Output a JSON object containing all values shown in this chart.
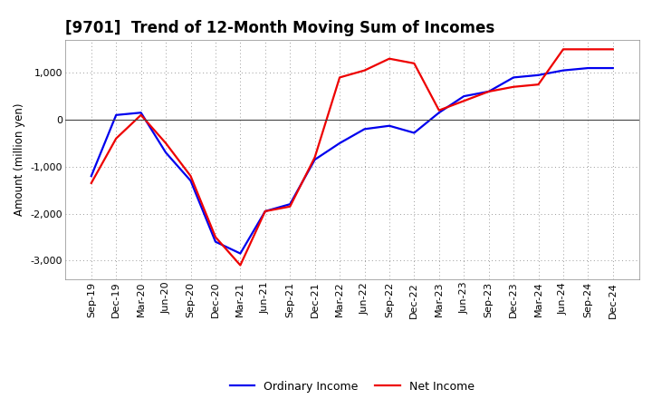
{
  "title": "[9701]  Trend of 12-Month Moving Sum of Incomes",
  "ylabel": "Amount (million yen)",
  "background_color": "#ffffff",
  "grid_color": "#aaaaaa",
  "x_labels": [
    "Sep-19",
    "Dec-19",
    "Mar-20",
    "Jun-20",
    "Sep-20",
    "Dec-20",
    "Mar-21",
    "Jun-21",
    "Sep-21",
    "Dec-21",
    "Mar-22",
    "Jun-22",
    "Sep-22",
    "Dec-22",
    "Mar-23",
    "Jun-23",
    "Sep-23",
    "Dec-23",
    "Mar-24",
    "Jun-24",
    "Sep-24",
    "Dec-24"
  ],
  "ordinary_income": [
    -1200,
    100,
    150,
    -700,
    -1300,
    -2600,
    -2850,
    -1950,
    -1800,
    -850,
    -500,
    -200,
    -130,
    -280,
    150,
    500,
    600,
    900,
    950,
    1050,
    1100,
    1100
  ],
  "net_income": [
    -1350,
    -400,
    100,
    -500,
    -1200,
    -2500,
    -3100,
    -1950,
    -1850,
    -800,
    900,
    1050,
    1300,
    1200,
    200,
    400,
    600,
    700,
    750,
    1500,
    1500,
    1500
  ],
  "ordinary_income_color": "#0000ee",
  "net_income_color": "#ee0000",
  "ylim": [
    -3400,
    1700
  ],
  "yticks": [
    -3000,
    -2000,
    -1000,
    0,
    1000
  ],
  "line_width": 1.6,
  "title_fontsize": 12,
  "legend_fontsize": 9,
  "tick_fontsize": 8,
  "ylabel_fontsize": 8.5
}
